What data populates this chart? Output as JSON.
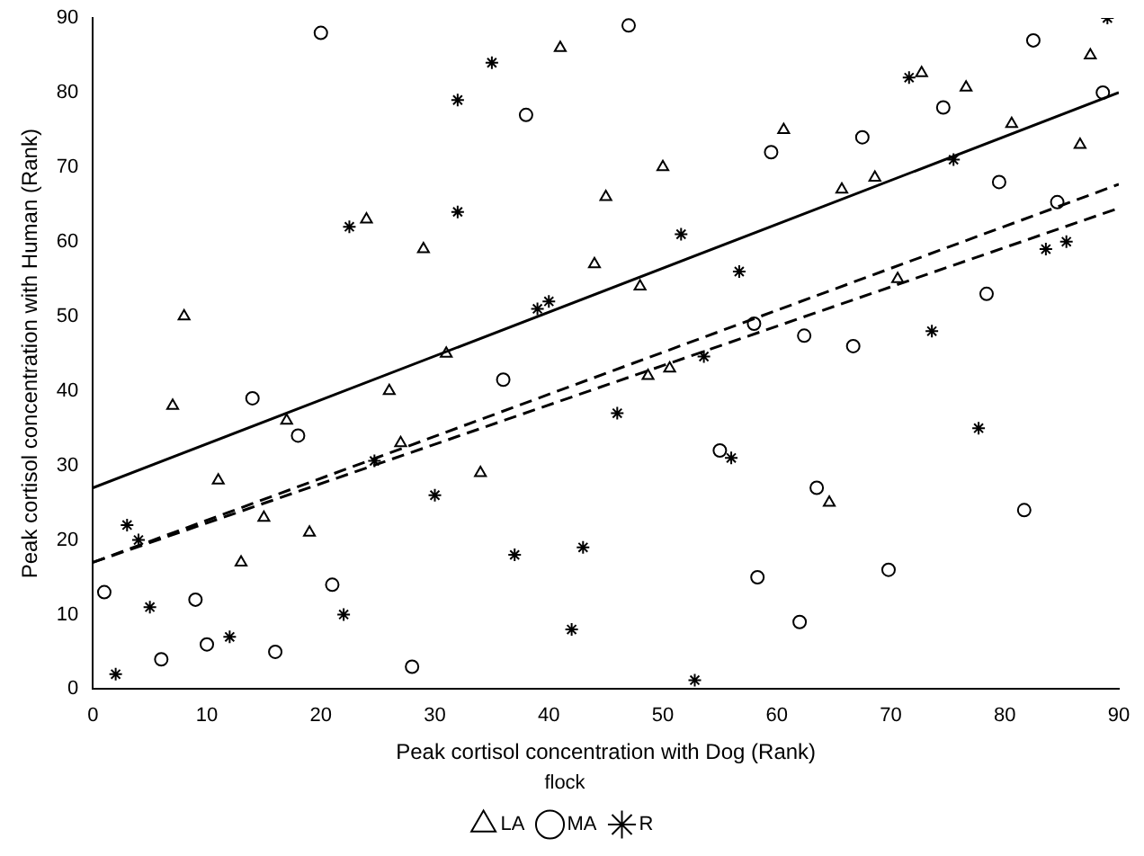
{
  "chart_data": {
    "type": "scatter",
    "xlabel": "Peak cortisol concentration with Dog (Rank)",
    "ylabel": "Peak cortisol concentration with Human (Rank)",
    "legend_title": "flock",
    "legend": "bottom",
    "grid": false,
    "xlim": [
      0,
      90
    ],
    "xticks": [
      0,
      10,
      20,
      30,
      40,
      50,
      60,
      70,
      80,
      90
    ],
    "ylim": [
      0,
      90
    ],
    "yticks": [
      0,
      10,
      20,
      30,
      40,
      50,
      60,
      70,
      80,
      90
    ],
    "series": [
      {
        "name": "LA",
        "marker": "triangle",
        "color": "#000000",
        "x": [
          41,
          45,
          24,
          29,
          44,
          8,
          31,
          87.5,
          72.7,
          76.6,
          60.6,
          80.6,
          86.6,
          50,
          68.6,
          65.7,
          48,
          70.6,
          48.7,
          50.6,
          7,
          17,
          26,
          27,
          11,
          34,
          15,
          19,
          13,
          64.6
        ],
        "values": [
          86,
          66,
          63,
          59,
          57,
          50,
          45,
          85,
          82.6,
          80.7,
          75,
          75.8,
          73,
          70,
          68.6,
          67,
          54,
          55,
          42,
          43,
          38,
          36,
          40,
          33,
          28,
          29,
          23,
          21,
          17,
          25
        ]
      },
      {
        "name": "MA",
        "marker": "circle",
        "color": "#000000",
        "x": [
          20,
          38,
          36,
          47,
          82.5,
          74.6,
          88.6,
          67.5,
          59.5,
          79.5,
          84.6,
          78.4,
          58,
          62.4,
          66.7,
          14,
          18,
          1,
          9,
          21,
          10,
          16,
          6,
          28,
          55,
          63.5,
          81.7,
          58.3,
          69.8,
          62
        ],
        "values": [
          88,
          77,
          41.5,
          89,
          87,
          78,
          80,
          74,
          72,
          68,
          65.3,
          53,
          49,
          47.4,
          46,
          39,
          34,
          13,
          12,
          14,
          6,
          5,
          4,
          3,
          32,
          27,
          24,
          15,
          16,
          9
        ]
      },
      {
        "name": "R",
        "marker": "cross",
        "color": "#000000",
        "x": [
          35,
          32,
          22.5,
          32,
          39,
          40,
          89,
          71.6,
          75.5,
          51.6,
          56.7,
          83.6,
          85.4,
          73.6,
          53.6,
          3,
          4,
          30,
          37,
          43,
          5,
          22,
          12,
          2,
          42,
          24.7,
          46,
          56,
          77.7,
          52.8
        ],
        "values": [
          84,
          79,
          62,
          64,
          51,
          52,
          90,
          82,
          71,
          61,
          56,
          59,
          60,
          48,
          44.6,
          22,
          20,
          26,
          18,
          19,
          11,
          10,
          7,
          2,
          8,
          30.6,
          37,
          31,
          35,
          1.2
        ]
      },
      {
        "type": "line",
        "line_style": "solid",
        "color": "#000000",
        "x": [
          0,
          90
        ],
        "values": [
          27,
          80
        ]
      },
      {
        "type": "line",
        "line_style": "dashed",
        "color": "#000000",
        "x": [
          0,
          90
        ],
        "values": [
          17,
          67.7
        ]
      },
      {
        "type": "line",
        "line_style": "dashed",
        "color": "#000000",
        "x": [
          0,
          90
        ],
        "values": [
          17,
          64.5
        ]
      }
    ]
  }
}
